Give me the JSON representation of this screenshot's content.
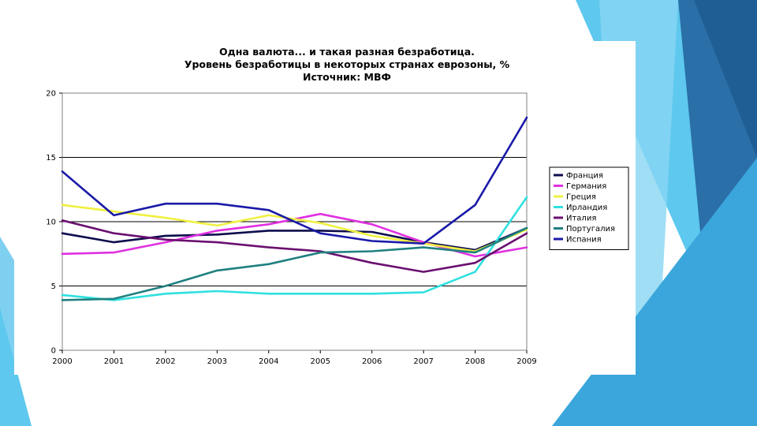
{
  "chart_data": {
    "type": "line",
    "title": "Одна валюта... и такая разная безработица.",
    "subtitle": "Уровень безработицы в некоторых странах еврозоны, %",
    "source": "Источник: МВФ",
    "xlabel": "",
    "ylabel": "",
    "x": [
      2000,
      2001,
      2002,
      2003,
      2004,
      2005,
      2006,
      2007,
      2008,
      2009
    ],
    "xlim": [
      2000,
      2009
    ],
    "ylim": [
      0,
      20
    ],
    "y_ticks": [
      0,
      5,
      10,
      15,
      20
    ],
    "grid": "horizontal",
    "legend_position": "right",
    "series": [
      {
        "name": "Франция",
        "color": "#0d0d4d",
        "values": [
          9.1,
          8.4,
          8.9,
          9.0,
          9.3,
          9.3,
          9.2,
          8.4,
          7.8,
          9.5
        ]
      },
      {
        "name": "Германия",
        "color": "#e030e0",
        "values": [
          7.5,
          7.6,
          8.4,
          9.3,
          9.8,
          10.6,
          9.8,
          8.4,
          7.3,
          8.0
        ]
      },
      {
        "name": "Греция",
        "color": "#f0f040",
        "values": [
          11.3,
          10.8,
          10.3,
          9.7,
          10.5,
          9.9,
          8.9,
          8.3,
          7.7,
          9.4
        ]
      },
      {
        "name": "Ирландия",
        "color": "#30e0e0",
        "values": [
          4.3,
          3.9,
          4.4,
          4.6,
          4.4,
          4.4,
          4.4,
          4.5,
          6.1,
          11.9
        ]
      },
      {
        "name": "Италия",
        "color": "#6a1070",
        "values": [
          10.1,
          9.1,
          8.6,
          8.4,
          8.0,
          7.7,
          6.8,
          6.1,
          6.8,
          9.1
        ]
      },
      {
        "name": "Португалия",
        "color": "#208080",
        "values": [
          3.9,
          4.0,
          5.0,
          6.2,
          6.7,
          7.6,
          7.7,
          8.0,
          7.6,
          9.5
        ]
      },
      {
        "name": "Испания",
        "color": "#1a1aa8",
        "values": [
          13.9,
          10.5,
          11.4,
          11.4,
          10.9,
          9.1,
          8.5,
          8.3,
          11.3,
          18.1
        ]
      }
    ]
  }
}
